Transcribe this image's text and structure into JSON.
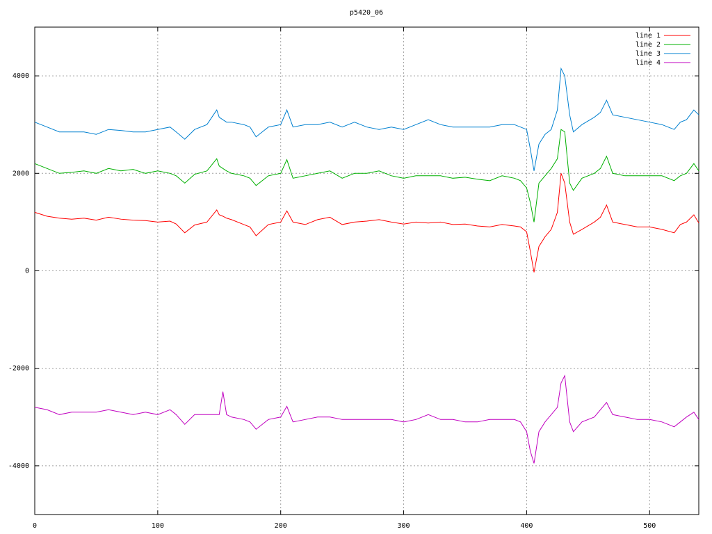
{
  "chart_data": {
    "type": "line",
    "title": "p5420_06",
    "x": [
      0,
      10,
      20,
      30,
      40,
      50,
      60,
      70,
      80,
      90,
      100,
      110,
      115,
      122,
      130,
      140,
      148,
      150,
      153,
      156,
      160,
      170,
      175,
      180,
      190,
      200,
      205,
      210,
      220,
      230,
      240,
      250,
      260,
      270,
      280,
      290,
      300,
      310,
      320,
      330,
      340,
      350,
      360,
      370,
      380,
      390,
      395,
      400,
      403,
      406,
      410,
      415,
      420,
      425,
      428,
      431,
      435,
      438,
      445,
      455,
      460,
      465,
      470,
      480,
      490,
      500,
      510,
      520,
      525,
      530,
      536,
      540
    ],
    "series": [
      {
        "name": "line 1",
        "color": "#ff0000",
        "values": [
          1200,
          1120,
          1080,
          1060,
          1080,
          1040,
          1100,
          1060,
          1040,
          1030,
          1000,
          1020,
          960,
          780,
          940,
          1000,
          1250,
          1150,
          1120,
          1080,
          1050,
          950,
          900,
          720,
          950,
          1000,
          1230,
          1000,
          950,
          1050,
          1100,
          950,
          1000,
          1020,
          1050,
          1000,
          960,
          1000,
          980,
          1000,
          950,
          960,
          920,
          900,
          950,
          920,
          900,
          800,
          400,
          -30,
          500,
          700,
          850,
          1200,
          2000,
          1800,
          1000,
          750,
          850,
          1000,
          1100,
          1350,
          1000,
          950,
          900,
          900,
          850,
          780,
          950,
          1000,
          1150,
          980
        ]
      },
      {
        "name": "line 2",
        "color": "#00b000",
        "values": [
          2200,
          2100,
          2000,
          2020,
          2050,
          2000,
          2100,
          2050,
          2080,
          2000,
          2050,
          2000,
          1950,
          1800,
          1980,
          2050,
          2300,
          2150,
          2100,
          2050,
          2000,
          1950,
          1900,
          1750,
          1950,
          2000,
          2280,
          1900,
          1950,
          2000,
          2050,
          1900,
          2000,
          2000,
          2050,
          1950,
          1900,
          1950,
          1950,
          1950,
          1900,
          1920,
          1880,
          1850,
          1950,
          1900,
          1850,
          1700,
          1400,
          1000,
          1800,
          1950,
          2100,
          2300,
          2900,
          2850,
          1800,
          1650,
          1900,
          2000,
          2100,
          2350,
          2000,
          1950,
          1950,
          1950,
          1950,
          1850,
          1950,
          2000,
          2200,
          2050
        ]
      },
      {
        "name": "line 3",
        "color": "#0080d0",
        "values": [
          3050,
          2950,
          2850,
          2850,
          2850,
          2800,
          2900,
          2880,
          2850,
          2850,
          2900,
          2950,
          2850,
          2700,
          2900,
          3000,
          3300,
          3150,
          3100,
          3050,
          3050,
          3000,
          2950,
          2750,
          2950,
          3000,
          3300,
          2950,
          3000,
          3000,
          3050,
          2950,
          3050,
          2950,
          2900,
          2950,
          2900,
          3000,
          3100,
          3000,
          2950,
          2950,
          2950,
          2950,
          3000,
          3000,
          2950,
          2900,
          2500,
          2050,
          2600,
          2800,
          2900,
          3300,
          4150,
          4000,
          3200,
          2850,
          3000,
          3150,
          3250,
          3500,
          3200,
          3150,
          3100,
          3050,
          3000,
          2900,
          3050,
          3100,
          3300,
          3200
        ]
      },
      {
        "name": "line 4",
        "color": "#c000c0",
        "values": [
          -2800,
          -2850,
          -2950,
          -2900,
          -2900,
          -2900,
          -2850,
          -2900,
          -2950,
          -2900,
          -2950,
          -2850,
          -2950,
          -3150,
          -2950,
          -2950,
          -2950,
          -2950,
          -2480,
          -2950,
          -3000,
          -3050,
          -3100,
          -3250,
          -3050,
          -3000,
          -2780,
          -3100,
          -3050,
          -3000,
          -3000,
          -3050,
          -3050,
          -3050,
          -3050,
          -3050,
          -3100,
          -3050,
          -2950,
          -3050,
          -3050,
          -3100,
          -3100,
          -3050,
          -3050,
          -3050,
          -3100,
          -3300,
          -3700,
          -3950,
          -3300,
          -3100,
          -2950,
          -2800,
          -2300,
          -2150,
          -3100,
          -3300,
          -3100,
          -3000,
          -2850,
          -2700,
          -2950,
          -3000,
          -3050,
          -3050,
          -3100,
          -3200,
          -3100,
          -3000,
          -2900,
          -3050
        ]
      }
    ],
    "xlim": [
      0,
      540
    ],
    "xticks": [
      0,
      100,
      200,
      300,
      400,
      500
    ],
    "ylim": [
      -5000,
      5000
    ],
    "yticks": [
      -4000,
      -2000,
      0,
      2000,
      4000
    ],
    "grid": true,
    "legend": "top-right"
  }
}
